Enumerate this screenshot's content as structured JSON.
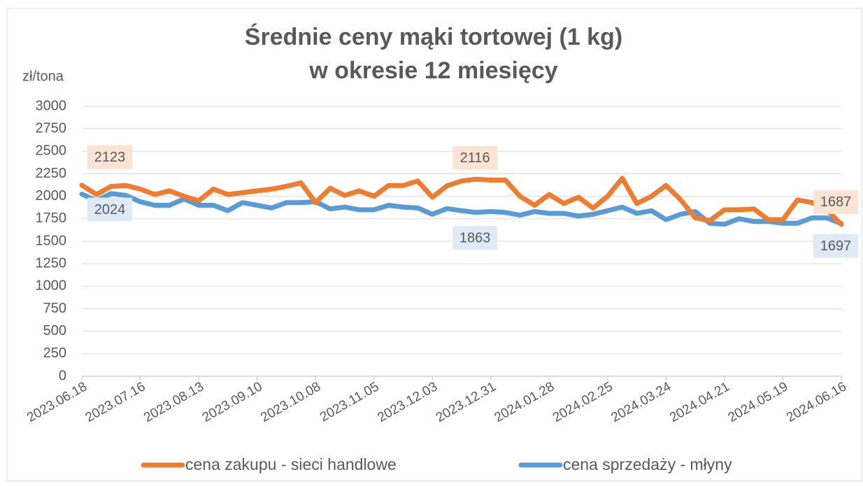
{
  "chart_data": {
    "type": "line",
    "title": [
      "Średnie ceny mąki tortowej (1 kg)",
      "w okresie 12 miesięcy"
    ],
    "y_label": "zł/tona",
    "categories": [
      "2023.06.18",
      null,
      null,
      null,
      "2023.07.16",
      null,
      null,
      null,
      "2023.08.13",
      null,
      null,
      null,
      "2023.09.10",
      null,
      null,
      null,
      "2023.10.08",
      null,
      null,
      null,
      "2023.11.05",
      null,
      null,
      null,
      "2023.12.03",
      null,
      null,
      null,
      "2023.12.31",
      null,
      null,
      null,
      "2024.01.28",
      null,
      null,
      null,
      "2024.02.25",
      null,
      null,
      null,
      "2024.03.24",
      null,
      null,
      null,
      "2024.04.21",
      null,
      null,
      null,
      "2024.05.19",
      null,
      null,
      null,
      "2024.06.16"
    ],
    "series": [
      {
        "name": "cena zakupu - sieci handlowe",
        "color": "#ed7d31",
        "label_color": "#fbe4d5",
        "values": [
          2123,
          2020,
          2110,
          2120,
          2080,
          2020,
          2060,
          2000,
          1950,
          2080,
          2020,
          2040,
          2060,
          2080,
          2110,
          2150,
          1930,
          2090,
          2010,
          2060,
          2000,
          2120,
          2120,
          2170,
          1990,
          2116,
          2170,
          2190,
          2180,
          2180,
          2000,
          1900,
          2020,
          1920,
          1990,
          1870,
          2000,
          2200,
          1920,
          2000,
          2120,
          1960,
          1760,
          1730,
          1850,
          1850,
          1860,
          1740,
          1740,
          1960,
          1930,
          1850,
          1687
        ]
      },
      {
        "name": "cena sprzedaży - młyny",
        "color": "#5b9bd5",
        "label_color": "#deebf7",
        "values": [
          2024,
          1950,
          2030,
          2010,
          1940,
          1900,
          1900,
          1970,
          1900,
          1900,
          1840,
          1930,
          1900,
          1870,
          1930,
          1930,
          1940,
          1860,
          1880,
          1850,
          1850,
          1900,
          1880,
          1870,
          1800,
          1863,
          1840,
          1820,
          1830,
          1820,
          1790,
          1830,
          1810,
          1810,
          1780,
          1800,
          1840,
          1880,
          1810,
          1840,
          1740,
          1800,
          1830,
          1700,
          1690,
          1750,
          1720,
          1720,
          1700,
          1700,
          1760,
          1760,
          1697
        ]
      }
    ],
    "labeled_points": [
      0,
      25,
      52
    ],
    "ylim": [
      0,
      3000
    ],
    "yticks": [
      0,
      250,
      500,
      750,
      1000,
      1250,
      1500,
      1750,
      2000,
      2250,
      2500,
      2750,
      3000
    ],
    "grid": true,
    "legend": "bottom"
  }
}
